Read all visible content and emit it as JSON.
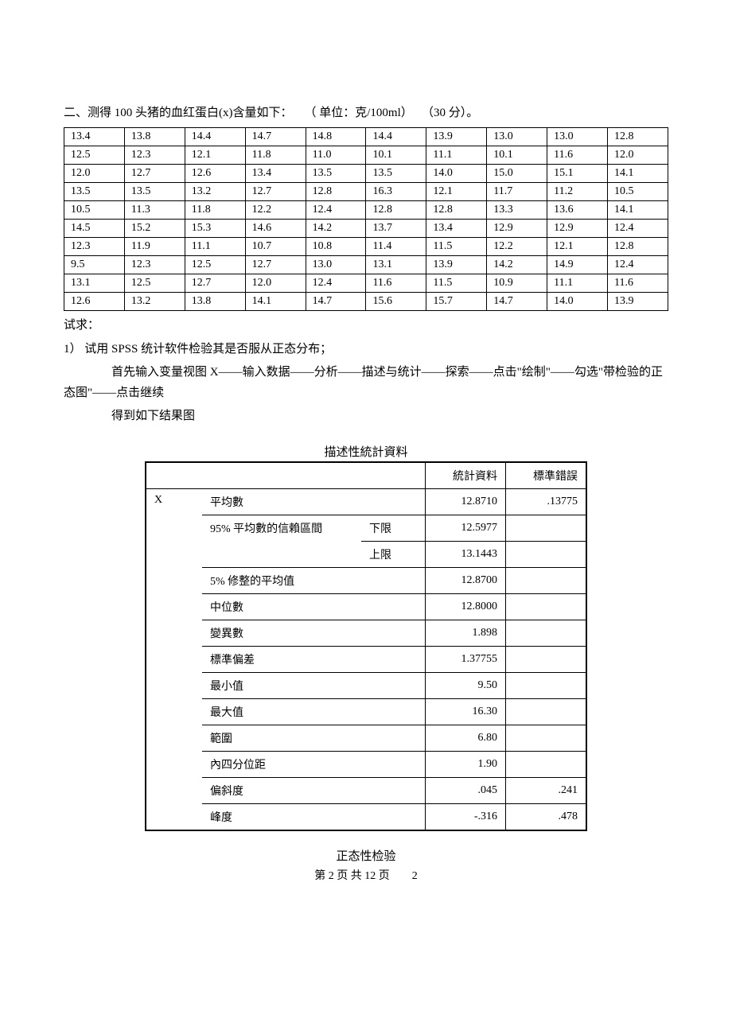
{
  "question": {
    "prefix": "二、测得 100 头猪的血红蛋白(x)含量如下：",
    "unit_hint": "（ 单位：克/100ml）",
    "score": "（30 分）。"
  },
  "data_table": {
    "rows": [
      [
        "13.4",
        "13.8",
        "14.4",
        "14.7",
        "14.8",
        "14.4",
        "13.9",
        "13.0",
        "13.0",
        "12.8"
      ],
      [
        "12.5",
        "12.3",
        "12.1",
        "11.8",
        "11.0",
        "10.1",
        "11.1",
        "10.1",
        "11.6",
        "12.0"
      ],
      [
        "12.0",
        "12.7",
        "12.6",
        "13.4",
        "13.5",
        "13.5",
        "14.0",
        "15.0",
        "15.1",
        "14.1"
      ],
      [
        "13.5",
        "13.5",
        "13.2",
        "12.7",
        "12.8",
        "16.3",
        "12.1",
        "11.7",
        "11.2",
        "10.5"
      ],
      [
        "10.5",
        "11.3",
        "11.8",
        "12.2",
        "12.4",
        "12.8",
        "12.8",
        "13.3",
        "13.6",
        "14.1"
      ],
      [
        "14.5",
        "15.2",
        "15.3",
        "14.6",
        "14.2",
        "13.7",
        "13.4",
        "12.9",
        "12.9",
        "12.4"
      ],
      [
        "12.3",
        "11.9",
        "11.1",
        "10.7",
        "10.8",
        "11.4",
        "11.5",
        "12.2",
        "12.1",
        "12.8"
      ],
      [
        "9.5",
        "12.3",
        "12.5",
        "12.7",
        "13.0",
        "13.1",
        "13.9",
        "14.2",
        "14.9",
        "12.4"
      ],
      [
        "13.1",
        "12.5",
        "12.7",
        "12.0",
        "12.4",
        "11.6",
        "11.5",
        "10.9",
        "11.1",
        "11.6"
      ],
      [
        "12.6",
        "13.2",
        "13.8",
        "14.1",
        "14.7",
        "15.6",
        "15.7",
        "14.7",
        "14.0",
        "13.9"
      ]
    ]
  },
  "instructions": {
    "line1": "试求：",
    "line2": "1） 试用 SPSS 统计软件检验其是否服从正态分布；",
    "line3": "首先输入变量视图 X——输入数据——分析——描述与统计——探索——点击\"绘制\"——勾选\"带检验的正态图\"——点击继续",
    "line4": "得到如下结果图"
  },
  "stats_table": {
    "title": "描述性統計資料",
    "header_stat": "統計資料",
    "header_err": "標準錯誤",
    "variable": "X",
    "rows": [
      {
        "label": "平均數",
        "sub": "",
        "stat": "12.8710",
        "err": ".13775"
      },
      {
        "label": "95% 平均數的信賴區間",
        "sub": "下限",
        "stat": "12.5977",
        "err": ""
      },
      {
        "label": "",
        "sub": "上限",
        "stat": "13.1443",
        "err": ""
      },
      {
        "label": "5% 修整的平均值",
        "sub": "",
        "stat": "12.8700",
        "err": ""
      },
      {
        "label": "中位數",
        "sub": "",
        "stat": "12.8000",
        "err": ""
      },
      {
        "label": "變異數",
        "sub": "",
        "stat": "1.898",
        "err": ""
      },
      {
        "label": "標準偏差",
        "sub": "",
        "stat": "1.37755",
        "err": ""
      },
      {
        "label": "最小值",
        "sub": "",
        "stat": "9.50",
        "err": ""
      },
      {
        "label": "最大值",
        "sub": "",
        "stat": "16.30",
        "err": ""
      },
      {
        "label": "範圍",
        "sub": "",
        "stat": "6.80",
        "err": ""
      },
      {
        "label": "內四分位距",
        "sub": "",
        "stat": "1.90",
        "err": ""
      },
      {
        "label": "偏斜度",
        "sub": "",
        "stat": ".045",
        "err": ".241"
      },
      {
        "label": "峰度",
        "sub": "",
        "stat": "-.316",
        "err": ".478"
      }
    ]
  },
  "normality_title": "正态性检验",
  "footer": "第 2 页 共 12 页　　2"
}
